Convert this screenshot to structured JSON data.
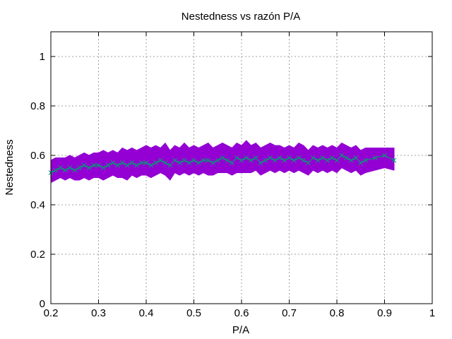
{
  "chart_data": {
    "type": "line",
    "title": "Nestedness vs razón P/A",
    "xlabel": "P/A",
    "ylabel": "Nestedness",
    "xlim": [
      0.2,
      1.0
    ],
    "ylim": [
      0.0,
      1.1
    ],
    "x_ticks": [
      "0.2",
      "0.3",
      "0.4",
      "0.5",
      "0.6",
      "0.7",
      "0.8",
      "0.9",
      "1"
    ],
    "y_ticks": [
      "0",
      "0.2",
      "0.4",
      "0.6",
      "0.8",
      "1"
    ],
    "x_tick_values": [
      0.2,
      0.3,
      0.4,
      0.5,
      0.6,
      0.7,
      0.8,
      0.9,
      1.0
    ],
    "y_tick_values": [
      0,
      0.2,
      0.4,
      0.6,
      0.8,
      1.0
    ],
    "grid": true,
    "colors": {
      "band": "#9400d3",
      "line": "#009e73"
    },
    "series": [
      {
        "x": [
          0.2,
          0.21,
          0.22,
          0.23,
          0.24,
          0.25,
          0.26,
          0.27,
          0.28,
          0.29,
          0.3,
          0.31,
          0.32,
          0.33,
          0.34,
          0.35,
          0.36,
          0.37,
          0.38,
          0.39,
          0.4,
          0.41,
          0.42,
          0.43,
          0.44,
          0.45,
          0.46,
          0.47,
          0.48,
          0.49,
          0.5,
          0.51,
          0.52,
          0.53,
          0.54,
          0.55,
          0.56,
          0.57,
          0.58,
          0.59,
          0.6,
          0.61,
          0.62,
          0.63,
          0.64,
          0.65,
          0.66,
          0.67,
          0.68,
          0.69,
          0.7,
          0.71,
          0.72,
          0.73,
          0.74,
          0.75,
          0.76,
          0.77,
          0.78,
          0.79,
          0.8,
          0.81,
          0.82,
          0.83,
          0.84,
          0.85,
          0.86,
          0.88,
          0.9,
          0.92
        ],
        "values": [
          0.53,
          0.54,
          0.55,
          0.54,
          0.55,
          0.54,
          0.55,
          0.56,
          0.55,
          0.56,
          0.56,
          0.55,
          0.56,
          0.57,
          0.56,
          0.57,
          0.56,
          0.57,
          0.56,
          0.57,
          0.57,
          0.56,
          0.57,
          0.58,
          0.57,
          0.56,
          0.58,
          0.57,
          0.58,
          0.57,
          0.58,
          0.57,
          0.58,
          0.58,
          0.57,
          0.58,
          0.59,
          0.58,
          0.57,
          0.59,
          0.58,
          0.59,
          0.58,
          0.59,
          0.57,
          0.58,
          0.59,
          0.58,
          0.59,
          0.58,
          0.59,
          0.58,
          0.59,
          0.58,
          0.57,
          0.59,
          0.58,
          0.59,
          0.58,
          0.59,
          0.58,
          0.6,
          0.59,
          0.58,
          0.59,
          0.57,
          0.58,
          0.59,
          0.6,
          0.58
        ],
        "upper": [
          0.58,
          0.59,
          0.59,
          0.59,
          0.6,
          0.59,
          0.6,
          0.61,
          0.6,
          0.61,
          0.61,
          0.62,
          0.61,
          0.62,
          0.61,
          0.63,
          0.62,
          0.63,
          0.62,
          0.63,
          0.64,
          0.63,
          0.64,
          0.63,
          0.65,
          0.62,
          0.64,
          0.63,
          0.65,
          0.63,
          0.64,
          0.63,
          0.64,
          0.65,
          0.63,
          0.64,
          0.65,
          0.64,
          0.63,
          0.65,
          0.64,
          0.66,
          0.64,
          0.65,
          0.63,
          0.64,
          0.65,
          0.64,
          0.64,
          0.63,
          0.64,
          0.63,
          0.65,
          0.64,
          0.62,
          0.64,
          0.63,
          0.64,
          0.63,
          0.64,
          0.63,
          0.65,
          0.64,
          0.63,
          0.64,
          0.62,
          0.63,
          0.63,
          0.63,
          0.63
        ],
        "lower": [
          0.49,
          0.5,
          0.51,
          0.5,
          0.51,
          0.5,
          0.5,
          0.51,
          0.5,
          0.51,
          0.51,
          0.5,
          0.51,
          0.52,
          0.51,
          0.51,
          0.5,
          0.52,
          0.51,
          0.52,
          0.52,
          0.51,
          0.52,
          0.53,
          0.52,
          0.5,
          0.53,
          0.52,
          0.53,
          0.52,
          0.53,
          0.52,
          0.53,
          0.52,
          0.52,
          0.53,
          0.53,
          0.53,
          0.52,
          0.53,
          0.53,
          0.53,
          0.53,
          0.54,
          0.52,
          0.53,
          0.54,
          0.53,
          0.54,
          0.53,
          0.54,
          0.53,
          0.54,
          0.53,
          0.52,
          0.54,
          0.53,
          0.54,
          0.53,
          0.54,
          0.53,
          0.55,
          0.54,
          0.53,
          0.54,
          0.52,
          0.53,
          0.54,
          0.55,
          0.54
        ]
      }
    ]
  }
}
